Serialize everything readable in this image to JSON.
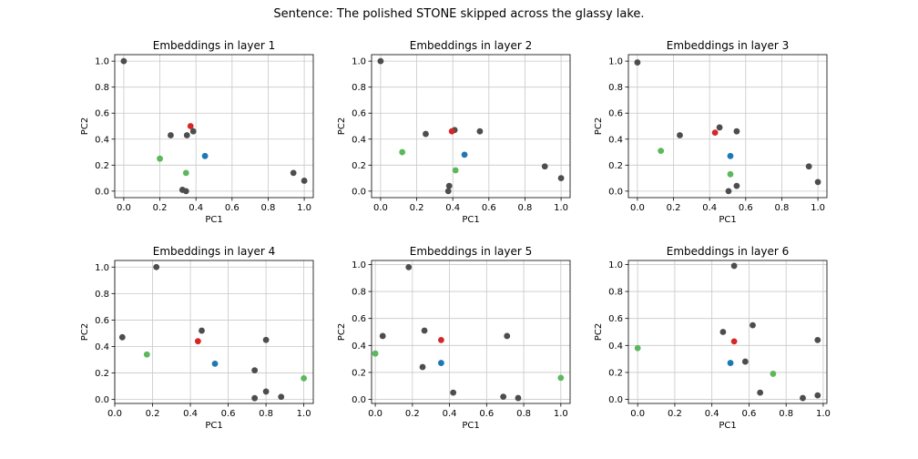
{
  "suptitle": "Sentence: The polished STONE skipped across the glassy lake.",
  "colors": {
    "other": "#4d4d4d",
    "red": "#d62728",
    "blue": "#1f77b4",
    "green": "#5cb85c",
    "grid": "#c8c8c8"
  },
  "chart_data": [
    {
      "type": "scatter",
      "title": "Embeddings in layer 1",
      "xlabel": "PC1",
      "ylabel": "PC2",
      "xlim": [
        -0.05,
        1.05
      ],
      "ylim": [
        -0.05,
        1.05
      ],
      "xticks": [
        "0.0",
        "0.2",
        "0.4",
        "0.6",
        "0.8",
        "1.0"
      ],
      "yticks": [
        "0.0",
        "0.2",
        "0.4",
        "0.6",
        "0.8",
        "1.0"
      ],
      "grid": true,
      "points": [
        {
          "x": 0.0,
          "y": 1.0,
          "c": "other"
        },
        {
          "x": 0.26,
          "y": 0.43,
          "c": "other"
        },
        {
          "x": 0.35,
          "y": 0.43,
          "c": "other"
        },
        {
          "x": 0.385,
          "y": 0.46,
          "c": "other"
        },
        {
          "x": 0.325,
          "y": 0.01,
          "c": "other"
        },
        {
          "x": 0.345,
          "y": 0.0,
          "c": "other"
        },
        {
          "x": 0.94,
          "y": 0.14,
          "c": "other"
        },
        {
          "x": 1.0,
          "y": 0.08,
          "c": "other"
        },
        {
          "x": 0.37,
          "y": 0.5,
          "c": "red"
        },
        {
          "x": 0.45,
          "y": 0.27,
          "c": "blue"
        },
        {
          "x": 0.2,
          "y": 0.25,
          "c": "green"
        },
        {
          "x": 0.345,
          "y": 0.14,
          "c": "green"
        }
      ]
    },
    {
      "type": "scatter",
      "title": "Embeddings in layer 2",
      "xlabel": "PC1",
      "ylabel": "PC2",
      "xlim": [
        -0.05,
        1.05
      ],
      "ylim": [
        -0.05,
        1.05
      ],
      "xticks": [
        "0.0",
        "0.2",
        "0.4",
        "0.6",
        "0.8",
        "1.0"
      ],
      "yticks": [
        "0.0",
        "0.2",
        "0.4",
        "0.6",
        "0.8",
        "1.0"
      ],
      "grid": true,
      "points": [
        {
          "x": 0.0,
          "y": 1.0,
          "c": "other"
        },
        {
          "x": 0.25,
          "y": 0.44,
          "c": "other"
        },
        {
          "x": 0.41,
          "y": 0.47,
          "c": "other"
        },
        {
          "x": 0.55,
          "y": 0.46,
          "c": "other"
        },
        {
          "x": 0.38,
          "y": 0.04,
          "c": "other"
        },
        {
          "x": 0.375,
          "y": 0.0,
          "c": "other"
        },
        {
          "x": 0.91,
          "y": 0.19,
          "c": "other"
        },
        {
          "x": 1.0,
          "y": 0.1,
          "c": "other"
        },
        {
          "x": 0.395,
          "y": 0.46,
          "c": "red"
        },
        {
          "x": 0.465,
          "y": 0.28,
          "c": "blue"
        },
        {
          "x": 0.12,
          "y": 0.3,
          "c": "green"
        },
        {
          "x": 0.415,
          "y": 0.16,
          "c": "green"
        }
      ]
    },
    {
      "type": "scatter",
      "title": "Embeddings in layer 3",
      "xlabel": "PC1",
      "ylabel": "PC2",
      "xlim": [
        -0.05,
        1.05
      ],
      "ylim": [
        -0.05,
        1.05
      ],
      "xticks": [
        "0.0",
        "0.2",
        "0.4",
        "0.6",
        "0.8",
        "1.0"
      ],
      "yticks": [
        "0.0",
        "0.2",
        "0.4",
        "0.6",
        "0.8",
        "1.0"
      ],
      "grid": true,
      "points": [
        {
          "x": 0.0,
          "y": 0.99,
          "c": "other"
        },
        {
          "x": 0.235,
          "y": 0.43,
          "c": "other"
        },
        {
          "x": 0.455,
          "y": 0.49,
          "c": "other"
        },
        {
          "x": 0.55,
          "y": 0.46,
          "c": "other"
        },
        {
          "x": 0.505,
          "y": 0.0,
          "c": "other"
        },
        {
          "x": 0.55,
          "y": 0.04,
          "c": "other"
        },
        {
          "x": 0.95,
          "y": 0.19,
          "c": "other"
        },
        {
          "x": 1.0,
          "y": 0.07,
          "c": "other"
        },
        {
          "x": 0.43,
          "y": 0.45,
          "c": "red"
        },
        {
          "x": 0.515,
          "y": 0.27,
          "c": "blue"
        },
        {
          "x": 0.13,
          "y": 0.31,
          "c": "green"
        },
        {
          "x": 0.515,
          "y": 0.13,
          "c": "green"
        }
      ]
    },
    {
      "type": "scatter",
      "title": "Embeddings in layer 4",
      "xlabel": "PC1",
      "ylabel": "PC2",
      "xlim": [
        0.0,
        1.05
      ],
      "ylim": [
        -0.03,
        1.05
      ],
      "xticks": [
        "0.0",
        "0.2",
        "0.4",
        "0.6",
        "0.8",
        "1.0"
      ],
      "yticks": [
        "0.0",
        "0.2",
        "0.4",
        "0.6",
        "0.8",
        "1.0"
      ],
      "grid": true,
      "points": [
        {
          "x": 0.22,
          "y": 1.0,
          "c": "other"
        },
        {
          "x": 0.04,
          "y": 0.47,
          "c": "other"
        },
        {
          "x": 0.46,
          "y": 0.52,
          "c": "other"
        },
        {
          "x": 0.8,
          "y": 0.45,
          "c": "other"
        },
        {
          "x": 0.74,
          "y": 0.22,
          "c": "other"
        },
        {
          "x": 0.74,
          "y": 0.01,
          "c": "other"
        },
        {
          "x": 0.8,
          "y": 0.06,
          "c": "other"
        },
        {
          "x": 0.88,
          "y": 0.02,
          "c": "other"
        },
        {
          "x": 0.44,
          "y": 0.44,
          "c": "red"
        },
        {
          "x": 0.53,
          "y": 0.27,
          "c": "blue"
        },
        {
          "x": 0.17,
          "y": 0.34,
          "c": "green"
        },
        {
          "x": 1.0,
          "y": 0.16,
          "c": "green"
        }
      ]
    },
    {
      "type": "scatter",
      "title": "Embeddings in layer 5",
      "xlabel": "PC1",
      "ylabel": "PC2",
      "xlim": [
        -0.02,
        1.05
      ],
      "ylim": [
        -0.03,
        1.03
      ],
      "xticks": [
        "0.0",
        "0.2",
        "0.4",
        "0.6",
        "0.8",
        "1.0"
      ],
      "yticks": [
        "0.0",
        "0.2",
        "0.4",
        "0.6",
        "0.8",
        "1.0"
      ],
      "grid": true,
      "points": [
        {
          "x": 0.18,
          "y": 0.98,
          "c": "other"
        },
        {
          "x": 0.04,
          "y": 0.47,
          "c": "other"
        },
        {
          "x": 0.265,
          "y": 0.51,
          "c": "other"
        },
        {
          "x": 0.71,
          "y": 0.47,
          "c": "other"
        },
        {
          "x": 0.255,
          "y": 0.24,
          "c": "other"
        },
        {
          "x": 0.42,
          "y": 0.05,
          "c": "other"
        },
        {
          "x": 0.69,
          "y": 0.02,
          "c": "other"
        },
        {
          "x": 0.77,
          "y": 0.01,
          "c": "other"
        },
        {
          "x": 0.355,
          "y": 0.44,
          "c": "red"
        },
        {
          "x": 0.355,
          "y": 0.27,
          "c": "blue"
        },
        {
          "x": 0.0,
          "y": 0.34,
          "c": "green"
        },
        {
          "x": 1.0,
          "y": 0.16,
          "c": "green"
        }
      ]
    },
    {
      "type": "scatter",
      "title": "Embeddings in layer 6",
      "xlabel": "PC1",
      "ylabel": "PC2",
      "xlim": [
        -0.05,
        1.02
      ],
      "ylim": [
        -0.03,
        1.03
      ],
      "xticks": [
        "0.0",
        "0.2",
        "0.4",
        "0.6",
        "0.8",
        "1.0"
      ],
      "yticks": [
        "0.0",
        "0.2",
        "0.4",
        "0.6",
        "0.8",
        "1.0"
      ],
      "grid": true,
      "points": [
        {
          "x": 0.52,
          "y": 0.99,
          "c": "other"
        },
        {
          "x": 0.46,
          "y": 0.5,
          "c": "other"
        },
        {
          "x": 0.62,
          "y": 0.55,
          "c": "other"
        },
        {
          "x": 0.97,
          "y": 0.44,
          "c": "other"
        },
        {
          "x": 0.58,
          "y": 0.28,
          "c": "other"
        },
        {
          "x": 0.66,
          "y": 0.05,
          "c": "other"
        },
        {
          "x": 0.89,
          "y": 0.01,
          "c": "other"
        },
        {
          "x": 0.97,
          "y": 0.03,
          "c": "other"
        },
        {
          "x": 0.52,
          "y": 0.43,
          "c": "red"
        },
        {
          "x": 0.5,
          "y": 0.27,
          "c": "blue"
        },
        {
          "x": 0.0,
          "y": 0.38,
          "c": "green"
        },
        {
          "x": 0.73,
          "y": 0.19,
          "c": "green"
        }
      ]
    }
  ]
}
